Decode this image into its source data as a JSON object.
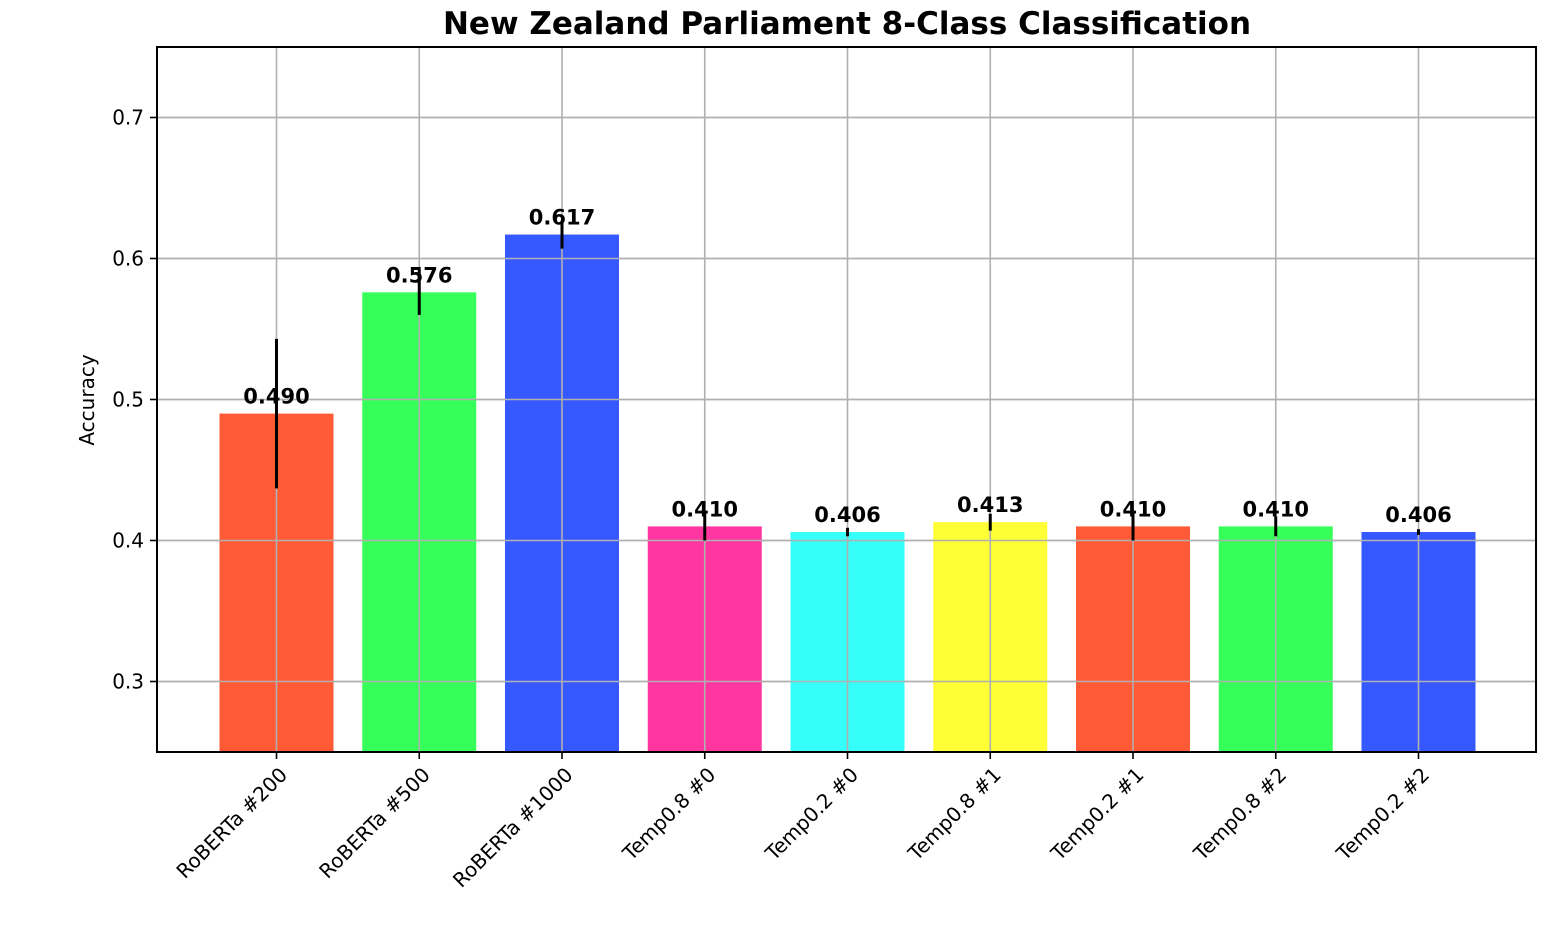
{
  "chart_data": {
    "type": "bar",
    "title": "New Zealand Parliament 8-Class Classification",
    "xlabel": "",
    "ylabel": "Accuracy",
    "ylim": [
      0.25,
      0.75
    ],
    "yticks": [
      0.3,
      0.4,
      0.5,
      0.6,
      0.7
    ],
    "ytick_labels": [
      "0.3",
      "0.4",
      "0.5",
      "0.6",
      "0.7"
    ],
    "grid": true,
    "legend": "none",
    "categories": [
      "RoBERTa #200",
      "RoBERTa #500",
      "RoBERTa #1000",
      "Temp0.8 #0",
      "Temp0.2 #0",
      "Temp0.8 #1",
      "Temp0.2 #1",
      "Temp0.8 #2",
      "Temp0.2 #2"
    ],
    "values": [
      0.49,
      0.576,
      0.617,
      0.41,
      0.406,
      0.413,
      0.41,
      0.41,
      0.406
    ],
    "value_labels": [
      "0.490",
      "0.576",
      "0.617",
      "0.410",
      "0.406",
      "0.413",
      "0.410",
      "0.410",
      "0.406"
    ],
    "errors": [
      0.053,
      0.016,
      0.01,
      0.01,
      0.003,
      0.006,
      0.01,
      0.007,
      0.002
    ],
    "colors": [
      "#ff5a36",
      "#36ff5a",
      "#3658ff",
      "#ff36a0",
      "#36fffa",
      "#ffff36",
      "#ff5a36",
      "#36ff5a",
      "#3658ff"
    ]
  }
}
